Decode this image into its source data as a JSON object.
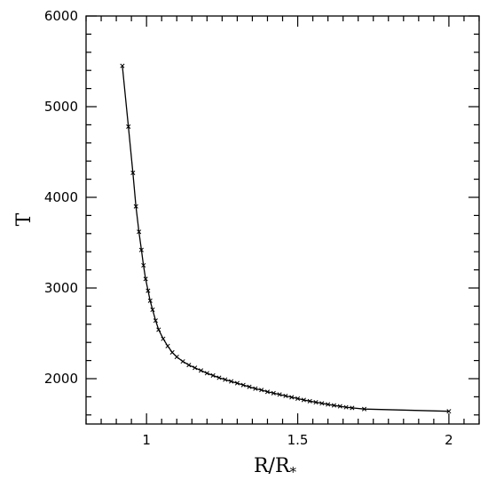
{
  "chart_data": {
    "type": "line",
    "title": "",
    "xlabel": "R/R",
    "xlabel_sub": "*",
    "ylabel": "T",
    "xlim": [
      0.8,
      2.1
    ],
    "ylim": [
      1500,
      6000
    ],
    "x_ticks": [
      {
        "value": 1,
        "label": "1"
      },
      {
        "value": 1.5,
        "label": "1.5"
      },
      {
        "value": 2,
        "label": "2"
      }
    ],
    "y_ticks": [
      {
        "value": 2000,
        "label": "2000"
      },
      {
        "value": 3000,
        "label": "3000"
      },
      {
        "value": 4000,
        "label": "4000"
      },
      {
        "value": 5000,
        "label": "5000"
      },
      {
        "value": 6000,
        "label": "6000"
      }
    ],
    "grid": false,
    "legend": "none",
    "marker": "x",
    "series": [
      {
        "x": [
          0.92,
          0.94,
          0.955,
          0.965,
          0.975,
          0.983,
          0.99,
          0.997,
          1.005,
          1.012,
          1.02,
          1.03,
          1.04,
          1.055,
          1.07,
          1.085,
          1.1,
          1.12,
          1.14,
          1.16,
          1.18,
          1.2,
          1.22,
          1.24,
          1.26,
          1.28,
          1.3,
          1.32,
          1.34,
          1.36,
          1.38,
          1.4,
          1.42,
          1.44,
          1.46,
          1.48,
          1.5,
          1.52,
          1.54,
          1.56,
          1.58,
          1.6,
          1.62,
          1.64,
          1.66,
          1.68,
          1.72,
          2.0
        ],
        "y": [
          5450,
          4780,
          4270,
          3900,
          3620,
          3420,
          3250,
          3100,
          2970,
          2860,
          2760,
          2640,
          2540,
          2440,
          2360,
          2290,
          2240,
          2190,
          2150,
          2120,
          2090,
          2060,
          2035,
          2010,
          1990,
          1970,
          1950,
          1930,
          1910,
          1890,
          1875,
          1855,
          1840,
          1825,
          1810,
          1795,
          1780,
          1765,
          1752,
          1740,
          1728,
          1716,
          1705,
          1695,
          1685,
          1677,
          1665,
          1640
        ]
      }
    ]
  }
}
